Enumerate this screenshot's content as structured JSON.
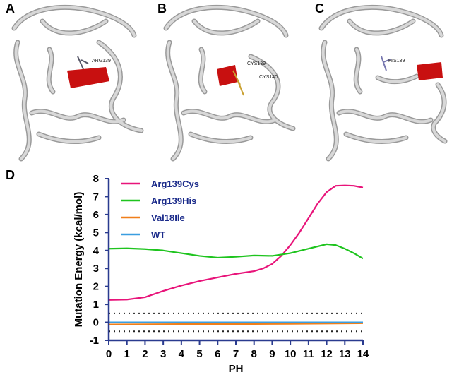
{
  "panels": {
    "a": {
      "letter": "A",
      "residue": "ARG139"
    },
    "b": {
      "letter": "B",
      "residue": "CYS139",
      "residue2": "CYS140"
    },
    "c": {
      "letter": "C",
      "residue": "HIS139"
    },
    "d": {
      "letter": "D"
    }
  },
  "colors": {
    "ribbon": "#c8c8c8",
    "highlight": "#d40f0f",
    "axis": "#2a3b8f"
  },
  "chart_data": {
    "type": "line",
    "xlabel": "PH",
    "ylabel": "Mutation Energy (kcal/mol)",
    "xlim": [
      0,
      14
    ],
    "ylim": [
      -1,
      8
    ],
    "xticks": [
      "0",
      "1",
      "2",
      "3",
      "4",
      "5",
      "6",
      "7",
      "8",
      "9",
      "10",
      "11",
      "12",
      "13",
      "14"
    ],
    "yticks": [
      "-1",
      "0",
      "1",
      "2",
      "3",
      "4",
      "5",
      "6",
      "7",
      "8"
    ],
    "reference_lines": [
      0.5,
      -0.5
    ],
    "legend_position": "top-left",
    "series": [
      {
        "name": "Arg139Cys",
        "color": "#e8147a",
        "x": [
          0,
          1,
          2,
          3,
          4,
          5,
          6,
          7,
          8,
          8.5,
          9,
          9.5,
          10,
          10.5,
          11,
          11.5,
          12,
          12.5,
          13,
          13.5,
          14
        ],
        "y": [
          1.25,
          1.27,
          1.4,
          1.75,
          2.05,
          2.3,
          2.5,
          2.7,
          2.85,
          3.0,
          3.25,
          3.7,
          4.3,
          5.0,
          5.8,
          6.6,
          7.25,
          7.6,
          7.62,
          7.6,
          7.5
        ]
      },
      {
        "name": "Arg139His",
        "color": "#1ec41e",
        "x": [
          0,
          1,
          2,
          3,
          4,
          5,
          6,
          7,
          8,
          9,
          10,
          11,
          12,
          12.5,
          13,
          13.5,
          14
        ],
        "y": [
          4.1,
          4.12,
          4.08,
          4.0,
          3.85,
          3.7,
          3.6,
          3.65,
          3.72,
          3.7,
          3.85,
          4.1,
          4.35,
          4.3,
          4.1,
          3.85,
          3.55
        ]
      },
      {
        "name": "Val18Ile",
        "color": "#f07f1a",
        "x": [
          0,
          2,
          4,
          6,
          8,
          10,
          12,
          14
        ],
        "y": [
          -0.12,
          -0.11,
          -0.1,
          -0.1,
          -0.09,
          -0.08,
          -0.07,
          -0.05
        ]
      },
      {
        "name": "WT",
        "color": "#3a9ee0",
        "x": [
          0,
          2,
          4,
          6,
          8,
          10,
          12,
          14
        ],
        "y": [
          0,
          0,
          0,
          0,
          0,
          0,
          0,
          0
        ]
      }
    ]
  }
}
